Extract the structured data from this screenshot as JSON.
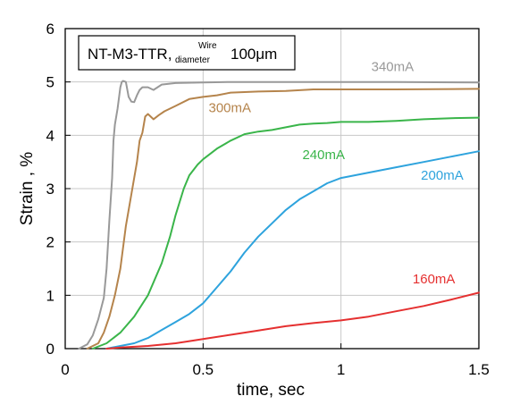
{
  "chart_data": {
    "type": "line",
    "xlabel": "time, sec",
    "ylabel": "Strain , %",
    "xlim": [
      0,
      1.5
    ],
    "ylim": [
      0,
      6
    ],
    "x_ticks": [
      "0",
      "0.5",
      "1",
      "1.5"
    ],
    "y_ticks": [
      "0",
      "1",
      "2",
      "3",
      "4",
      "5",
      "6"
    ],
    "grid": true,
    "legend_box": {
      "main": "NT-M3-TTR,",
      "sup": "Wire",
      "sub": "diameter",
      "value": "100μm"
    },
    "series": [
      {
        "name": "340mA",
        "color": "#999999",
        "x": [
          0.05,
          0.08,
          0.1,
          0.12,
          0.14,
          0.15,
          0.16,
          0.17,
          0.175,
          0.18,
          0.19,
          0.2,
          0.205,
          0.21,
          0.22,
          0.23,
          0.24,
          0.25,
          0.26,
          0.27,
          0.28,
          0.3,
          0.32,
          0.35,
          0.4,
          0.5,
          0.6,
          0.8,
          1.0,
          1.2,
          1.5
        ],
        "y": [
          0,
          0.08,
          0.25,
          0.55,
          0.95,
          1.5,
          2.4,
          3.2,
          3.9,
          4.2,
          4.5,
          4.9,
          5.0,
          5.02,
          5.0,
          4.72,
          4.63,
          4.62,
          4.75,
          4.85,
          4.9,
          4.9,
          4.85,
          4.95,
          4.98,
          4.99,
          5.0,
          5.0,
          5.0,
          5.0,
          4.99
        ]
      },
      {
        "name": "300mA",
        "color": "#b5844c",
        "x": [
          0.08,
          0.1,
          0.12,
          0.14,
          0.16,
          0.18,
          0.2,
          0.22,
          0.24,
          0.25,
          0.26,
          0.27,
          0.28,
          0.29,
          0.3,
          0.32,
          0.34,
          0.36,
          0.38,
          0.4,
          0.45,
          0.5,
          0.55,
          0.6,
          0.7,
          0.8,
          0.9,
          1.0,
          1.2,
          1.5
        ],
        "y": [
          0,
          0.05,
          0.1,
          0.3,
          0.6,
          1.0,
          1.5,
          2.3,
          2.9,
          3.2,
          3.5,
          3.9,
          4.05,
          4.35,
          4.4,
          4.3,
          4.38,
          4.45,
          4.5,
          4.55,
          4.68,
          4.72,
          4.75,
          4.8,
          4.82,
          4.83,
          4.86,
          4.86,
          4.86,
          4.87
        ]
      },
      {
        "name": "240mA",
        "color": "#3ab54a",
        "x": [
          0.1,
          0.15,
          0.2,
          0.25,
          0.3,
          0.35,
          0.38,
          0.4,
          0.43,
          0.45,
          0.48,
          0.5,
          0.55,
          0.6,
          0.65,
          0.7,
          0.75,
          0.8,
          0.85,
          0.9,
          0.95,
          1.0,
          1.1,
          1.2,
          1.3,
          1.4,
          1.5
        ],
        "y": [
          0,
          0.1,
          0.3,
          0.6,
          1.0,
          1.6,
          2.1,
          2.5,
          3.0,
          3.25,
          3.45,
          3.55,
          3.75,
          3.9,
          4.02,
          4.07,
          4.1,
          4.15,
          4.2,
          4.22,
          4.23,
          4.25,
          4.25,
          4.27,
          4.3,
          4.32,
          4.33
        ]
      },
      {
        "name": "200mA",
        "color": "#2ea3dd",
        "x": [
          0.15,
          0.2,
          0.25,
          0.3,
          0.35,
          0.4,
          0.45,
          0.5,
          0.55,
          0.6,
          0.65,
          0.7,
          0.75,
          0.8,
          0.85,
          0.9,
          0.95,
          1.0,
          1.1,
          1.2,
          1.3,
          1.4,
          1.5
        ],
        "y": [
          0,
          0.05,
          0.1,
          0.2,
          0.35,
          0.5,
          0.65,
          0.85,
          1.15,
          1.45,
          1.8,
          2.1,
          2.35,
          2.6,
          2.8,
          2.95,
          3.1,
          3.2,
          3.3,
          3.4,
          3.5,
          3.6,
          3.7
        ]
      },
      {
        "name": "160mA",
        "color": "#e53030",
        "x": [
          0.15,
          0.2,
          0.3,
          0.4,
          0.5,
          0.6,
          0.7,
          0.8,
          0.9,
          1.0,
          1.1,
          1.2,
          1.3,
          1.4,
          1.5
        ],
        "y": [
          0,
          0.02,
          0.05,
          0.1,
          0.18,
          0.26,
          0.34,
          0.42,
          0.48,
          0.53,
          0.6,
          0.7,
          0.8,
          0.92,
          1.05
        ]
      }
    ],
    "series_labels": [
      {
        "text": "340mA",
        "x": 1.11,
        "y": 5.2
      },
      {
        "text": "300mA",
        "x": 0.52,
        "y": 4.43
      },
      {
        "text": "240mA",
        "x": 0.86,
        "y": 3.55
      },
      {
        "text": "200mA",
        "x": 1.29,
        "y": 3.17
      },
      {
        "text": "160mA",
        "x": 1.26,
        "y": 1.22
      }
    ]
  }
}
